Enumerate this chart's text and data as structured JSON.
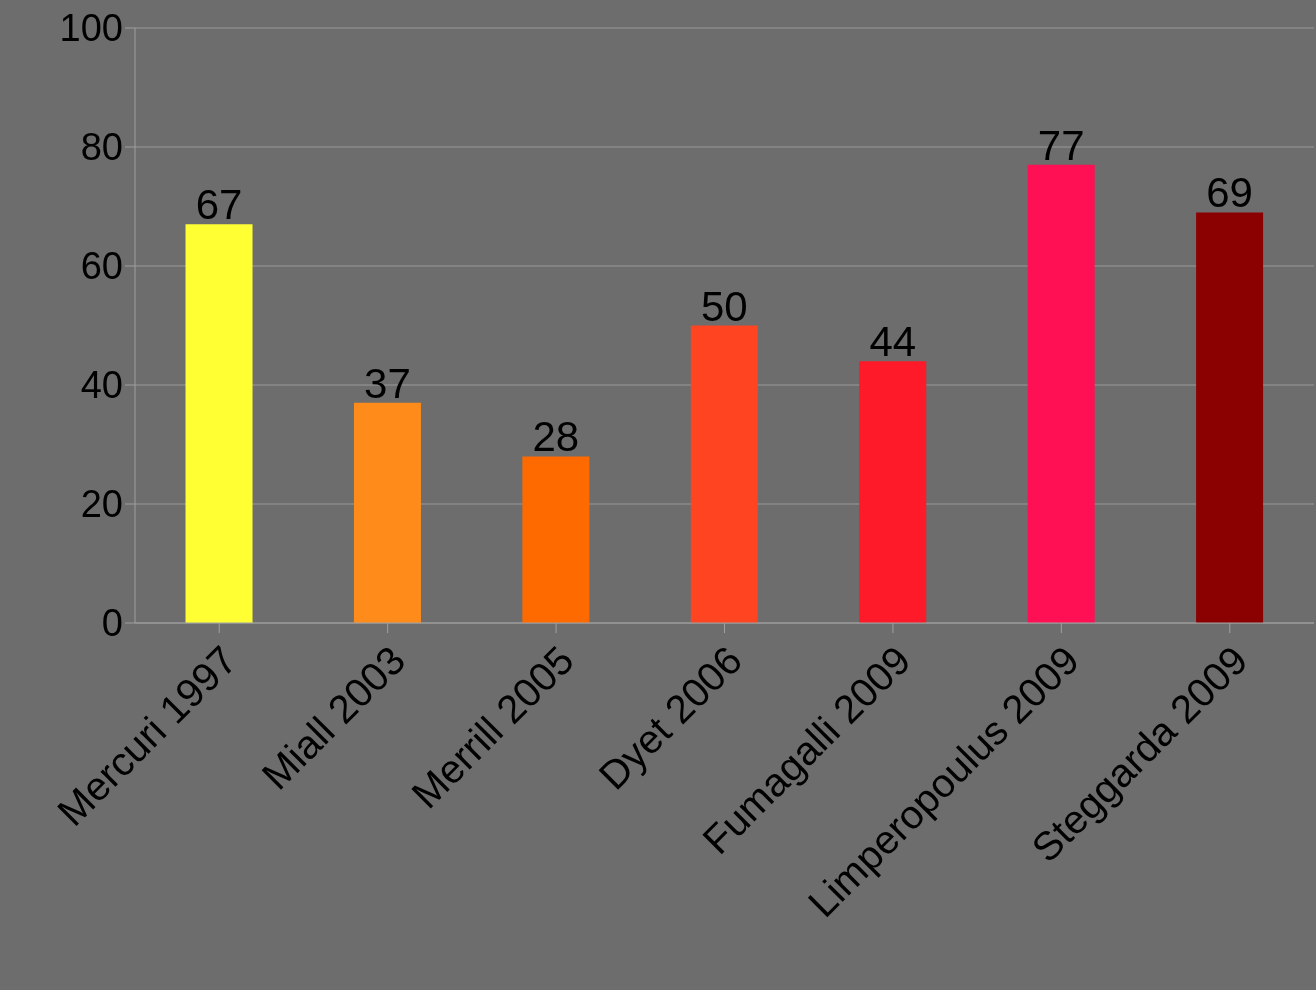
{
  "chart_data": {
    "type": "bar",
    "categories": [
      "Mercuri 1997",
      "Miall 2003",
      "Merrill 2005",
      "Dyet 2006",
      "Fumagalli 2009",
      "Limperopoulus 2009",
      "Steggarda 2009"
    ],
    "values": [
      67,
      37,
      28,
      50,
      44,
      77,
      69
    ],
    "colors": [
      "#ffff33",
      "#ff8c1a",
      "#ff6a00",
      "#ff4422",
      "#ff1a2a",
      "#ff1055",
      "#8b0000"
    ],
    "ylim": [
      0,
      100
    ],
    "yticks": [
      0,
      20,
      40,
      60,
      80,
      100
    ],
    "grid": "y",
    "data_labels": true
  }
}
